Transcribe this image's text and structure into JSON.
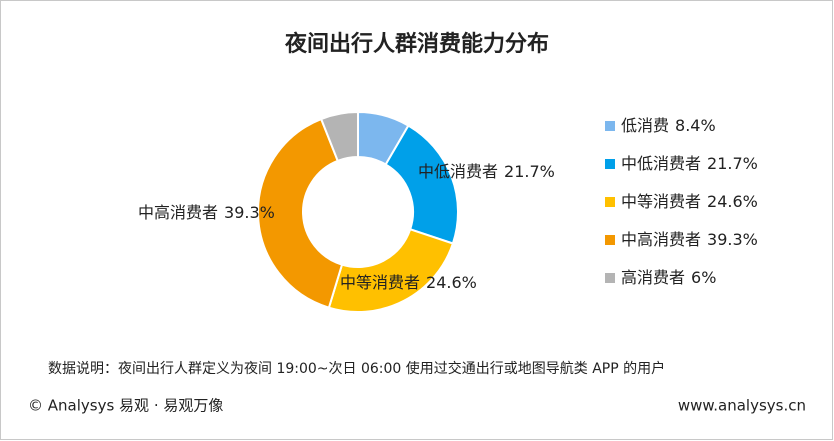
{
  "chart_data": {
    "type": "donut",
    "title": "夜间出行人群消费能力分布",
    "categories": [
      "低消费",
      "中低消费者",
      "中等消费者",
      "中高消费者",
      "高消费者"
    ],
    "values": [
      8.4,
      21.7,
      24.6,
      39.3,
      6
    ],
    "value_labels": [
      "8.4%",
      "21.7%",
      "24.6%",
      "39.3%",
      "6%"
    ],
    "colors": [
      "#7cb7ee",
      "#00a0e9",
      "#ffc000",
      "#f39800",
      "#b4b4b4"
    ],
    "legend": "right"
  },
  "note": "数据说明：夜间出行人群定义为夜间 19:00~次日 06:00 使用过交通出行或地图导航类 APP 的用户",
  "footer": {
    "left": "© Analysys 易观 · 易观万像",
    "right": "www.analysys.cn"
  }
}
